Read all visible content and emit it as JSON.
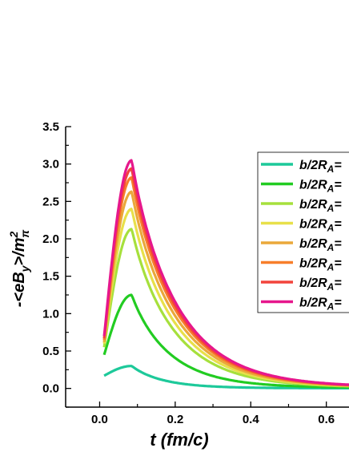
{
  "chart_data": {
    "type": "line",
    "xlabel_main": "t",
    "xlabel_unit": " (fm/c)",
    "ylabel": "-<eB",
    "ylabel_sub": "y",
    "ylabel_tail": ">/m",
    "ylabel_sup": "2",
    "ylabel_pi": "π",
    "xlim": [
      -0.09,
      0.66
    ],
    "ylim": [
      -0.25,
      3.5
    ],
    "xticks": [
      0.0,
      0.2,
      0.4,
      0.6
    ],
    "xtick_labels": [
      "0.0",
      "0.2",
      "0.4",
      "0.6"
    ],
    "yticks": [
      0.0,
      0.5,
      1.0,
      1.5,
      2.0,
      2.5,
      3.0,
      3.5
    ],
    "ytick_labels": [
      "0.0",
      "0.5",
      "1.0",
      "1.5",
      "2.0",
      "2.5",
      "3.0",
      "3.5"
    ],
    "legend_position": "top-right",
    "legend_label_prefix": "b/2R",
    "legend_label_sub": "A",
    "legend_label_suffix": "=",
    "peak_x": 0.085,
    "series": [
      {
        "color": "#1dc99a",
        "peak": 0.3,
        "start": 0.17,
        "tau": 0.085
      },
      {
        "color": "#22cc22",
        "peak": 1.25,
        "start": 0.45,
        "tau": 0.105
      },
      {
        "color": "#a6e03c",
        "peak": 2.13,
        "start": 0.55,
        "tau": 0.115
      },
      {
        "color": "#e8e04a",
        "peak": 2.4,
        "start": 0.6,
        "tau": 0.118
      },
      {
        "color": "#eaa83a",
        "peak": 2.63,
        "start": 0.62,
        "tau": 0.12
      },
      {
        "color": "#f77e2a",
        "peak": 2.82,
        "start": 0.65,
        "tau": 0.122
      },
      {
        "color": "#f2443c",
        "peak": 2.94,
        "start": 0.67,
        "tau": 0.123
      },
      {
        "color": "#e6178c",
        "peak": 3.05,
        "start": 0.7,
        "tau": 0.124
      }
    ]
  }
}
